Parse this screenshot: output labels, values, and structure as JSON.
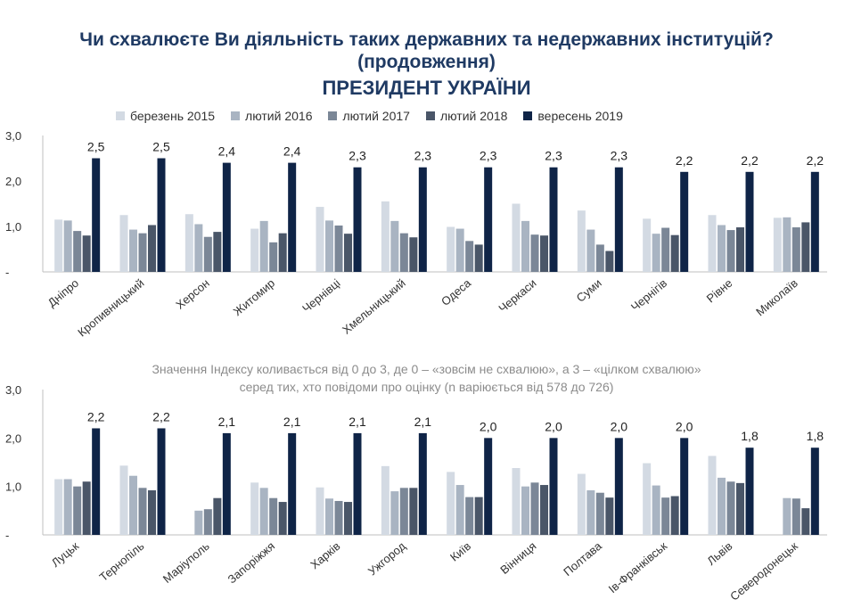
{
  "title": "Чи схвалюєте Ви діяльність таких державних та недержавних інституцій?",
  "title_cont": "(продовження)",
  "subtitle": "ПРЕЗИДЕНТ УКРАЇНИ",
  "note_line1": "Значення Індексу коливається від 0 до 3, де 0 – «зовсім не схвалюю», а 3 – «цілком схвалюю»",
  "note_line2": "серед тих, хто повідоми про оцінку (n варіюється від 578 до 726)",
  "colors": [
    "#d3dae3",
    "#a9b4c2",
    "#7b8797",
    "#4a5668",
    "#0f2447"
  ],
  "chart_data": [
    {
      "type": "bar",
      "categories": [
        "Дніпро",
        "Кропивницький",
        "Херсон",
        "Житомир",
        "Чернівці",
        "Хмельницький",
        "Одеса",
        "Черкаси",
        "Суми",
        "Чернігів",
        "Рівне",
        "Миколаїв"
      ],
      "series": [
        {
          "name": "березень 2015",
          "values": [
            1.15,
            1.25,
            1.27,
            0.95,
            1.43,
            1.55,
            0.99,
            1.5,
            1.35,
            1.17,
            1.25,
            1.19
          ]
        },
        {
          "name": "лютий 2016",
          "values": [
            1.13,
            0.93,
            1.05,
            1.12,
            1.13,
            1.12,
            0.95,
            1.12,
            0.93,
            0.84,
            1.03,
            1.2
          ]
        },
        {
          "name": "лютий 2017",
          "values": [
            0.9,
            0.85,
            0.77,
            0.65,
            1.02,
            0.85,
            0.68,
            0.82,
            0.6,
            0.97,
            0.92,
            0.98
          ]
        },
        {
          "name": "лютий 2018",
          "values": [
            0.8,
            1.03,
            0.88,
            0.85,
            0.84,
            0.76,
            0.6,
            0.8,
            0.46,
            0.81,
            0.98,
            1.09
          ]
        },
        {
          "name": "вересень 2019",
          "values": [
            2.5,
            2.5,
            2.4,
            2.4,
            2.3,
            2.3,
            2.3,
            2.3,
            2.3,
            2.2,
            2.2,
            2.2
          ]
        }
      ],
      "data_labels": [
        "2,5",
        "2,5",
        "2,4",
        "2,4",
        "2,3",
        "2,3",
        "2,3",
        "2,3",
        "2,3",
        "2,2",
        "2,2",
        "2,2"
      ],
      "y_ticks": [
        "3,0",
        "2,0",
        "1,0",
        "-"
      ],
      "ylim": [
        0,
        3
      ]
    },
    {
      "type": "bar",
      "categories": [
        "Луцьк",
        "Тернопіль",
        "Маріуполь",
        "Запоріжжя",
        "Харків",
        "Ужгород",
        "Київ",
        "Вінниця",
        "Полтава",
        "Ів-Франківськ",
        "Львів",
        "Северодонецьк"
      ],
      "series": [
        {
          "name": "березень 2015",
          "values": [
            1.15,
            1.43,
            null,
            1.08,
            0.98,
            1.42,
            1.3,
            1.38,
            1.26,
            1.48,
            1.63,
            null
          ]
        },
        {
          "name": "лютий 2016",
          "values": [
            1.15,
            1.22,
            0.5,
            0.97,
            0.75,
            0.9,
            1.03,
            1.0,
            0.92,
            1.02,
            1.18,
            0.76
          ]
        },
        {
          "name": "лютий 2017",
          "values": [
            1.0,
            0.97,
            0.53,
            0.76,
            0.7,
            0.97,
            0.78,
            1.08,
            0.87,
            0.77,
            1.1,
            0.75
          ]
        },
        {
          "name": "лютий 2018",
          "values": [
            1.1,
            0.92,
            0.76,
            0.68,
            0.68,
            0.97,
            0.78,
            1.03,
            0.77,
            0.8,
            1.07,
            0.55
          ]
        },
        {
          "name": "вересень 2019",
          "values": [
            2.2,
            2.2,
            2.1,
            2.1,
            2.1,
            2.1,
            2.0,
            2.0,
            2.0,
            2.0,
            1.8,
            1.8
          ]
        }
      ],
      "data_labels": [
        "2,2",
        "2,2",
        "2,1",
        "2,1",
        "2,1",
        "2,1",
        "2,0",
        "2,0",
        "2,0",
        "2,0",
        "1,8",
        "1,8"
      ],
      "y_ticks": [
        "3,0",
        "2,0",
        "1,0",
        "-"
      ],
      "ylim": [
        0,
        3
      ]
    }
  ]
}
